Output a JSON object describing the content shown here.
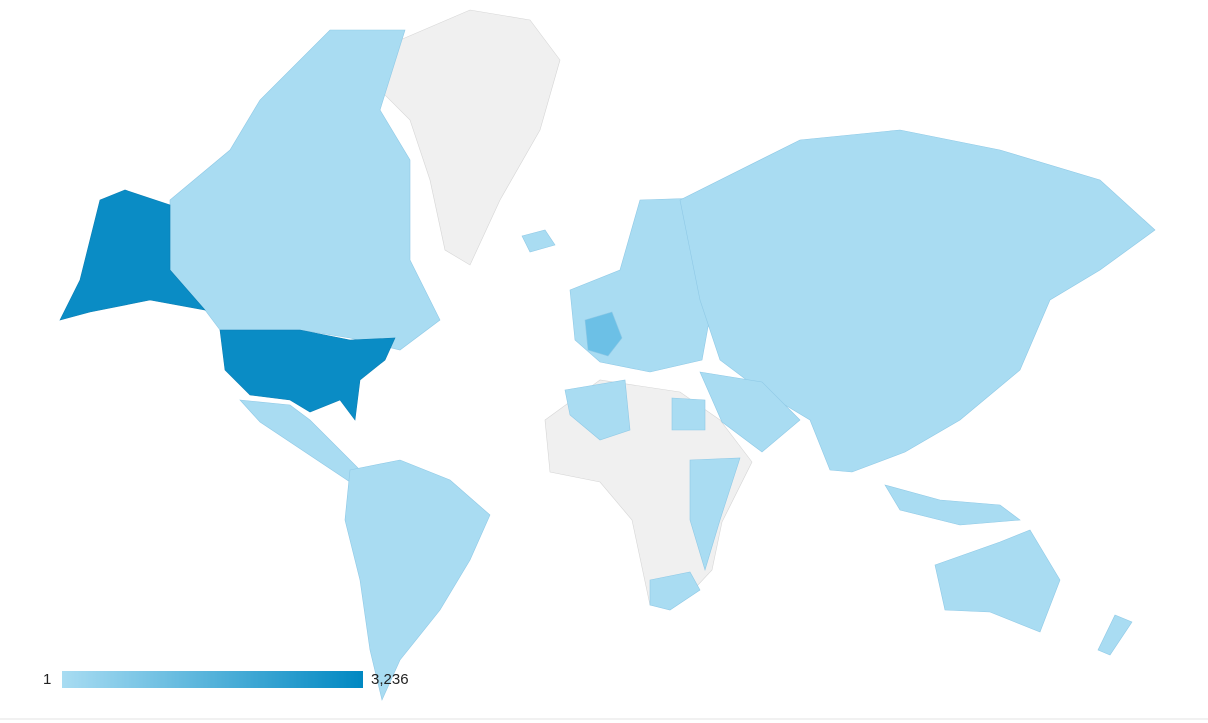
{
  "legend": {
    "min": 1,
    "max": {
      "value": 3236,
      "label": "3,236"
    },
    "colors": [
      "#a8dcf2",
      "#0088c2"
    ]
  }
}
